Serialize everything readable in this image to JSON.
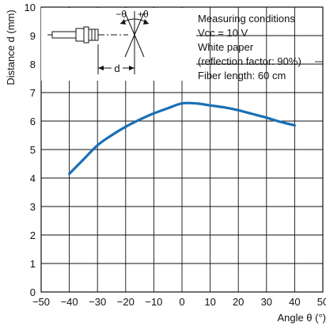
{
  "chart_data": {
    "type": "line",
    "title": "",
    "xlabel": "Angle θ (°)",
    "ylabel": "Distance d (mm)",
    "xlim": [
      -50,
      50
    ],
    "ylim": [
      0,
      10
    ],
    "x_ticks": [
      -50,
      -40,
      -30,
      -20,
      -10,
      0,
      10,
      20,
      30,
      40,
      50
    ],
    "y_ticks": [
      0,
      1,
      2,
      3,
      4,
      5,
      6,
      7,
      8,
      9,
      10
    ],
    "x_tick_labels": [
      "−50",
      "−40",
      "−30",
      "−20",
      "−10",
      "0",
      "10",
      "20",
      "30",
      "40",
      "50"
    ],
    "y_tick_labels": [
      "0",
      "1",
      "2",
      "3",
      "4",
      "5",
      "6",
      "7",
      "8",
      "9",
      "10"
    ],
    "grid": true,
    "series": [
      {
        "color": "#1a6fb5",
        "x": [
          -40,
          -35,
          -30,
          -25,
          -20,
          -15,
          -10,
          -5,
          0,
          5,
          10,
          15,
          20,
          25,
          30,
          35,
          40
        ],
        "y": [
          4.15,
          4.65,
          5.15,
          5.5,
          5.8,
          6.05,
          6.27,
          6.45,
          6.62,
          6.62,
          6.55,
          6.48,
          6.38,
          6.25,
          6.12,
          5.97,
          5.85
        ]
      }
    ],
    "annotations": {
      "conditions": [
        "Measuring conditions",
        "Vcc = 10 V",
        "White paper",
        "(reflection factor: 90%)",
        "Fiber length: 60 cm"
      ],
      "diagram_labels": {
        "minus_theta": "−θ",
        "plus_theta": "+θ",
        "d": "d"
      }
    }
  }
}
